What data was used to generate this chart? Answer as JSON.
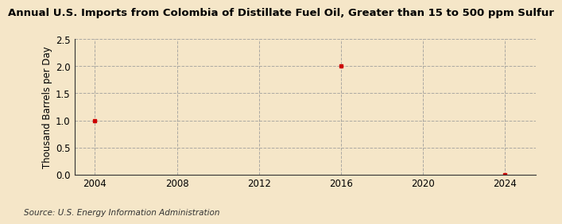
{
  "title": "Annual U.S. Imports from Colombia of Distillate Fuel Oil, Greater than 15 to 500 ppm Sulfur",
  "ylabel": "Thousand Barrels per Day",
  "source": "Source: U.S. Energy Information Administration",
  "background_color": "#f5e6c8",
  "plot_bg_color": "#f5e6c8",
  "data_x": [
    2004,
    2016,
    2024
  ],
  "data_y": [
    1.0,
    2.0,
    0.0
  ],
  "marker_color": "#cc0000",
  "marker_style": "s",
  "marker_size": 3.5,
  "xlim": [
    2003,
    2025.5
  ],
  "ylim": [
    0.0,
    2.5
  ],
  "xticks": [
    2004,
    2008,
    2012,
    2016,
    2020,
    2024
  ],
  "yticks": [
    0.0,
    0.5,
    1.0,
    1.5,
    2.0,
    2.5
  ],
  "grid_color": "#999999",
  "grid_style": "--",
  "grid_alpha": 0.8,
  "title_fontsize": 9.5,
  "label_fontsize": 8.5,
  "tick_fontsize": 8.5,
  "source_fontsize": 7.5
}
